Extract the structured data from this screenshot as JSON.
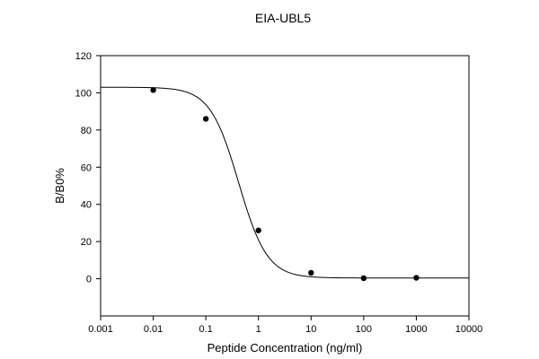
{
  "chart_data": {
    "type": "scatter",
    "title": "EIA-UBL5",
    "xlabel": "Peptide Concentration (ng/ml)",
    "ylabel": "B/B0%",
    "x_scale": "log",
    "xlim": [
      0.001,
      10000
    ],
    "ylim": [
      -20,
      120
    ],
    "grid": false,
    "legend": "none",
    "x_ticks": [
      0.001,
      0.01,
      0.1,
      1,
      10,
      100,
      1000,
      10000
    ],
    "x_tick_labels": [
      "0.001",
      "0.01",
      "0.1",
      "1",
      "10",
      "100",
      "1000",
      "10000"
    ],
    "y_ticks": [
      0,
      20,
      40,
      60,
      80,
      100,
      120
    ],
    "y_tick_labels": [
      "0",
      "20",
      "40",
      "60",
      "80",
      "100",
      "120"
    ],
    "series": [
      {
        "type": "scatter",
        "x": [
          0.01,
          0.1,
          1,
          10,
          100,
          1000
        ],
        "y": [
          101.5,
          86,
          26,
          3.2,
          0.3,
          0.5
        ]
      },
      {
        "type": "line",
        "fit": "four-parameter logistic",
        "fit_params": {
          "top": 103,
          "bottom": 0.4,
          "ec50": 0.42,
          "hill": 1.6
        }
      }
    ],
    "colors": {
      "marks": "#000000",
      "axes": "#000000",
      "background": "#ffffff"
    }
  }
}
